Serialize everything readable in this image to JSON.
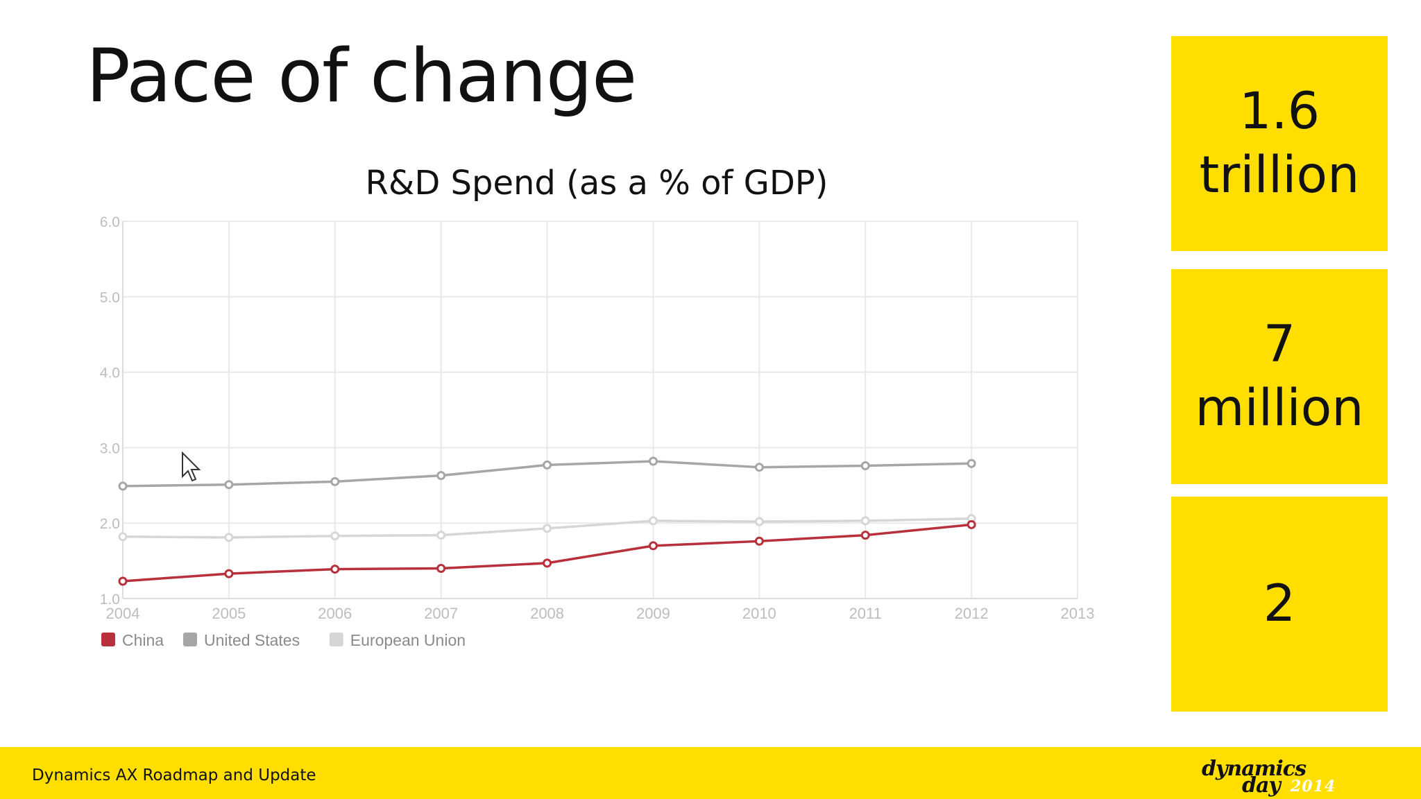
{
  "slide": {
    "title": "Pace of change",
    "footer_text": "Dynamics AX Roadmap and Update",
    "logo": {
      "line1": "dynamics",
      "line2": "day",
      "year": "2014"
    }
  },
  "stats": [
    {
      "text": "1.6\ntrillion"
    },
    {
      "text": "7\nmillion"
    },
    {
      "text": "2"
    }
  ],
  "colors": {
    "accent_yellow": "#ffde00",
    "china": "#b8303b",
    "united_states": "#a6a6a6",
    "european_union": "#d6d6d6"
  },
  "cursor_icon": "mouse-pointer-icon",
  "chart_data": {
    "type": "line",
    "title": "R&D Spend (as a % of GDP)",
    "x": [
      2004,
      2005,
      2006,
      2007,
      2008,
      2009,
      2010,
      2011,
      2012
    ],
    "x_ticks": [
      "2004",
      "2005",
      "2006",
      "2007",
      "2008",
      "2009",
      "2010",
      "2011",
      "2012",
      "2013"
    ],
    "xlim": [
      2004,
      2013
    ],
    "y_ticks": [
      "1.0",
      "2.0",
      "3.0",
      "4.0",
      "5.0",
      "6.0"
    ],
    "ylim": [
      1.0,
      6.0
    ],
    "grid": true,
    "legend_position": "bottom-left",
    "series": [
      {
        "name": "China",
        "color": "#b8303b",
        "values": [
          1.23,
          1.33,
          1.39,
          1.4,
          1.47,
          1.7,
          1.76,
          1.84,
          1.98
        ]
      },
      {
        "name": "United States",
        "color": "#a6a6a6",
        "values": [
          2.49,
          2.51,
          2.55,
          2.63,
          2.77,
          2.82,
          2.74,
          2.76,
          2.79
        ]
      },
      {
        "name": "European Union",
        "color": "#d6d6d6",
        "values": [
          1.82,
          1.81,
          1.83,
          1.84,
          1.93,
          2.03,
          2.02,
          2.03,
          2.06
        ]
      }
    ]
  }
}
